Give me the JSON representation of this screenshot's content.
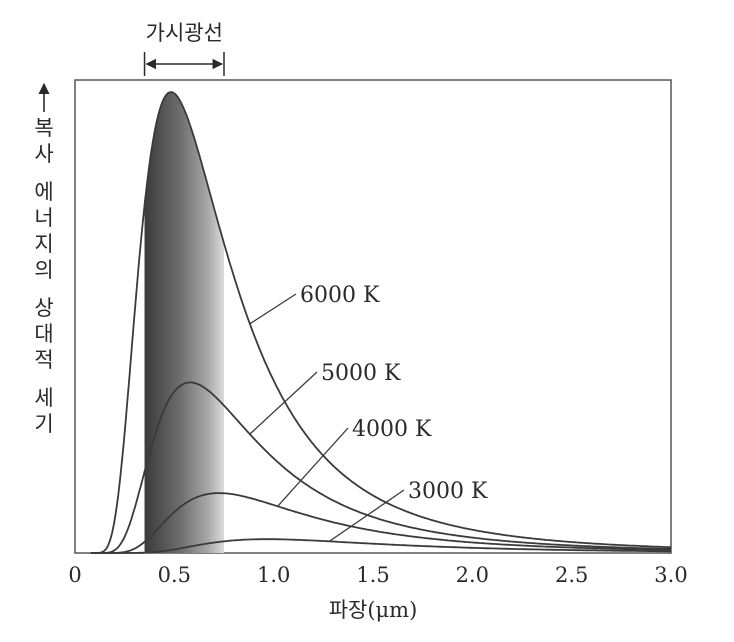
{
  "chart_data": {
    "type": "line",
    "xlabel": "파장(μm)",
    "ylabel": "복사 에너지의 상대적 세기",
    "xlim": [
      0,
      3.0
    ],
    "ylim": [
      0,
      1.0
    ],
    "x_ticks": [
      0,
      0.5,
      1.0,
      1.5,
      2.0,
      2.5,
      3.0
    ],
    "x_tick_labels": [
      "0",
      "0.5",
      "1.0",
      "1.5",
      "2.0",
      "2.5",
      "3.0"
    ],
    "visible_band": {
      "label": "가시광선",
      "range": [
        0.35,
        0.75
      ]
    },
    "grid": false,
    "legend": "inline labels with leader lines",
    "series": [
      {
        "name": "6000 K",
        "temperature": 6000,
        "peak_x": 0.47,
        "peak_y": 1.0
      },
      {
        "name": "5000 K",
        "temperature": 5000,
        "peak_x": 0.57,
        "peak_y": 0.37
      },
      {
        "name": "4000 K",
        "temperature": 4000,
        "peak_x": 0.7,
        "peak_y": 0.13
      },
      {
        "name": "3000 K",
        "temperature": 3000,
        "peak_x": 0.95,
        "peak_y": 0.03
      }
    ]
  }
}
